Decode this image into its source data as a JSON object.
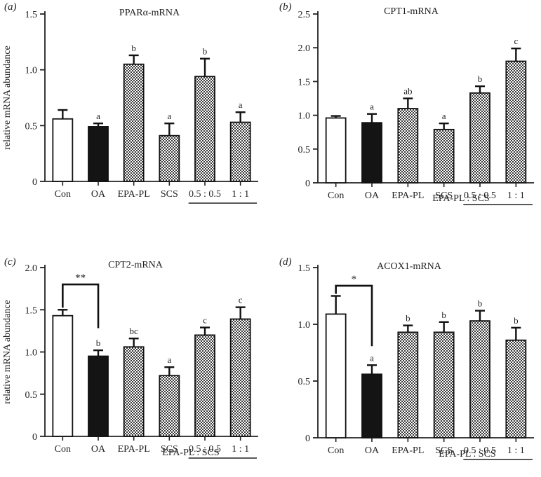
{
  "figure": {
    "group_label": "EPA-PL : SCS",
    "ylabel": "relative mRNA abundance"
  },
  "chart_data": [
    {
      "type": "bar",
      "panel_label": "(a)",
      "title": "PPARα-mRNA",
      "xlabel": "",
      "ylabel": "relative mRNA abundance",
      "categories": [
        "Con",
        "OA",
        "EPA-PL",
        "SCS",
        "0.5 : 0.5",
        "1 : 1"
      ],
      "values": [
        0.56,
        0.49,
        1.05,
        0.41,
        0.94,
        0.53
      ],
      "errors": [
        0.08,
        0.03,
        0.08,
        0.11,
        0.16,
        0.09
      ],
      "letters": [
        "",
        "a",
        "b",
        "a",
        "b",
        "a"
      ],
      "fills": [
        "white",
        "black",
        "hatch",
        "hatch",
        "hatch",
        "hatch"
      ],
      "ylim": [
        0,
        1.5
      ],
      "yticks": [
        0,
        0.5,
        1.0,
        1.5
      ],
      "ytick_labels": [
        "0",
        "0.5",
        "1.0",
        "1.5"
      ],
      "significance": null
    },
    {
      "type": "bar",
      "panel_label": "(b)",
      "title": "CPT1-mRNA",
      "xlabel": "",
      "ylabel": "",
      "categories": [
        "Con",
        "OA",
        "EPA-PL",
        "SCS",
        "0.5 : 0.5",
        "1 : 1"
      ],
      "values": [
        0.96,
        0.89,
        1.1,
        0.79,
        1.33,
        1.8
      ],
      "errors": [
        0.03,
        0.13,
        0.15,
        0.09,
        0.1,
        0.19
      ],
      "letters": [
        "",
        "a",
        "ab",
        "a",
        "b",
        "c"
      ],
      "fills": [
        "white",
        "black",
        "hatch",
        "hatch",
        "hatch",
        "hatch"
      ],
      "ylim": [
        0,
        2.5
      ],
      "yticks": [
        0,
        0.5,
        1.0,
        1.5,
        2.0,
        2.5
      ],
      "ytick_labels": [
        "0",
        "0.5",
        "1.0",
        "1.5",
        "2.0",
        "2.5"
      ],
      "significance": null
    },
    {
      "type": "bar",
      "panel_label": "(c)",
      "title": "CPT2-mRNA",
      "xlabel": "",
      "ylabel": "relative mRNA abundance",
      "categories": [
        "Con",
        "OA",
        "EPA-PL",
        "SCS",
        "0.5 : 0.5",
        "1 : 1"
      ],
      "values": [
        1.43,
        0.95,
        1.06,
        0.72,
        1.2,
        1.39
      ],
      "errors": [
        0.07,
        0.07,
        0.1,
        0.1,
        0.09,
        0.14
      ],
      "letters": [
        "",
        "b",
        "bc",
        "a",
        "c",
        "c"
      ],
      "fills": [
        "white",
        "black",
        "hatch",
        "hatch",
        "hatch",
        "hatch"
      ],
      "ylim": [
        0,
        2.0
      ],
      "yticks": [
        0,
        0.5,
        1.0,
        1.5,
        2.0
      ],
      "ytick_labels": [
        "0",
        "0.5",
        "1.0",
        "1.5",
        "2.0"
      ],
      "significance": {
        "from": 0,
        "to": 1,
        "label": "**",
        "level": 1.8
      }
    },
    {
      "type": "bar",
      "panel_label": "(d)",
      "title": "ACOX1-mRNA",
      "xlabel": "",
      "ylabel": "",
      "categories": [
        "Con",
        "OA",
        "EPA-PL",
        "SCS",
        "0.5 : 0.5",
        "1 : 1"
      ],
      "values": [
        1.09,
        0.56,
        0.93,
        0.93,
        1.03,
        0.86
      ],
      "errors": [
        0.16,
        0.08,
        0.06,
        0.09,
        0.09,
        0.11
      ],
      "letters": [
        "",
        "a",
        "b",
        "b",
        "b",
        "b"
      ],
      "fills": [
        "white",
        "black",
        "hatch",
        "hatch",
        "hatch",
        "hatch"
      ],
      "ylim": [
        0,
        1.5
      ],
      "yticks": [
        0,
        0.5,
        1.0,
        1.5
      ],
      "ytick_labels": [
        "0",
        "0.5",
        "1.0",
        "1.5"
      ],
      "significance": {
        "from": 0,
        "to": 1,
        "label": "*",
        "level": 1.34
      }
    }
  ]
}
